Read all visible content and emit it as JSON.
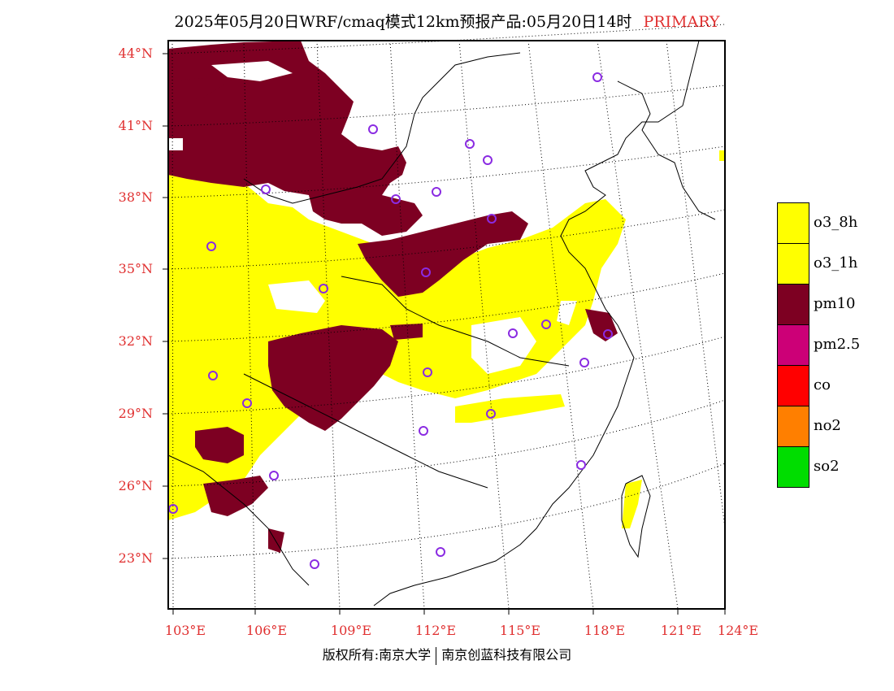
{
  "title": {
    "main": "2025年05月20日WRF/cmaq模式12km预报产品:05月20日14时",
    "tag": "PRIMARY"
  },
  "axes": {
    "lat_labels": [
      "44°N",
      "41°N",
      "38°N",
      "35°N",
      "32°N",
      "29°N",
      "26°N",
      "23°N"
    ],
    "lon_labels": [
      "103°E",
      "106°E",
      "109°E",
      "112°E",
      "115°E",
      "118°E",
      "121°E",
      "124°E"
    ]
  },
  "legend": [
    {
      "label": "o3_8h",
      "color": "#ffff00"
    },
    {
      "label": "o3_1h",
      "color": "#ffff00"
    },
    {
      "label": "pm10",
      "color": "#7d0022"
    },
    {
      "label": "pm2.5",
      "color": "#cc0077"
    },
    {
      "label": "co",
      "color": "#ff0000"
    },
    {
      "label": "no2",
      "color": "#ff7f00"
    },
    {
      "label": "so2",
      "color": "#00dd00"
    }
  ],
  "footer": {
    "left": "版权所有:南京大学",
    "right": "南京创蓝科技有限公司"
  }
}
